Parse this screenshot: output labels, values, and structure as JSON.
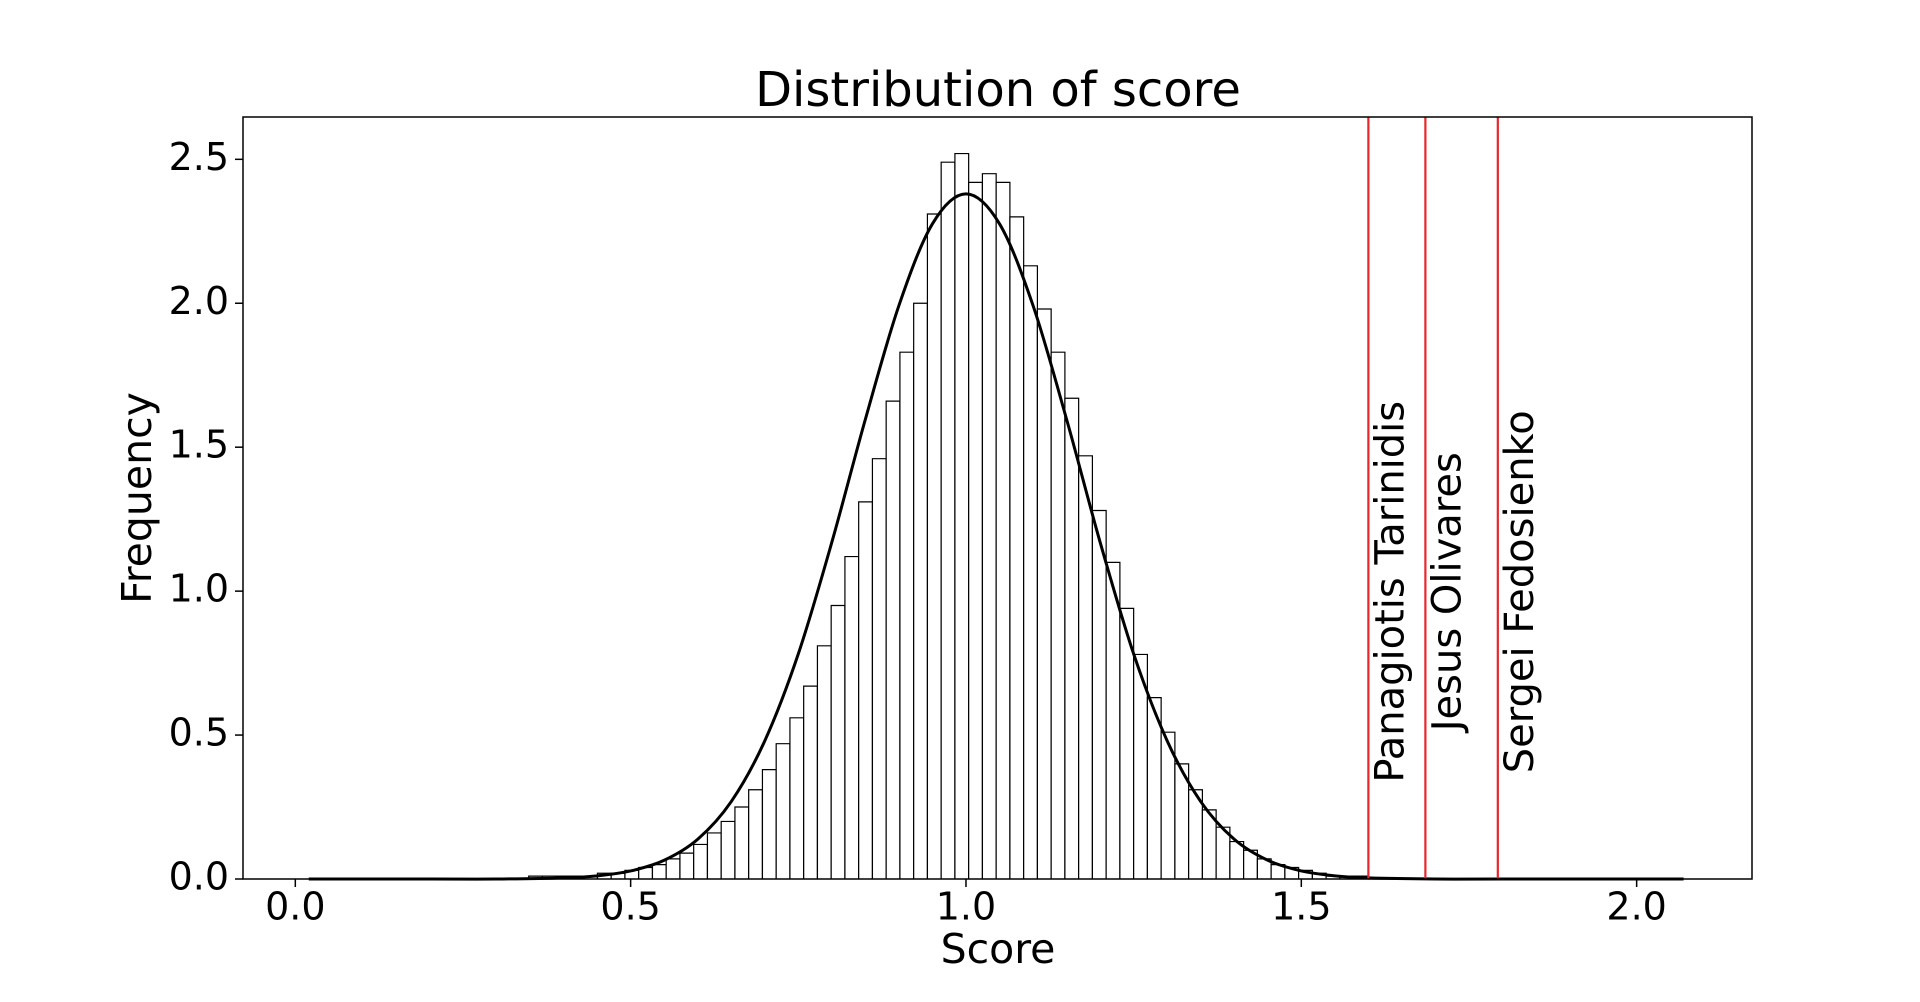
{
  "chart_data": {
    "type": "histogram",
    "title": "Distribution of score",
    "xlabel": "Score",
    "ylabel": "Frequency",
    "bins": [
      0.02,
      0.0405,
      0.061,
      0.0815,
      0.102,
      0.1225,
      0.143,
      0.1635,
      0.184,
      0.2045,
      0.225,
      0.2455,
      0.266,
      0.2865,
      0.307,
      0.3275,
      0.348,
      0.3685,
      0.389,
      0.4095,
      0.43,
      0.4505,
      0.471,
      0.4915,
      0.512,
      0.5325,
      0.553,
      0.5735,
      0.594,
      0.6145,
      0.635,
      0.6555,
      0.676,
      0.6965,
      0.717,
      0.7375,
      0.758,
      0.7785,
      0.799,
      0.8195,
      0.84,
      0.8605,
      0.881,
      0.9015,
      0.922,
      0.9425,
      0.963,
      0.9835,
      1.004,
      1.0245,
      1.045,
      1.0655,
      1.086,
      1.1065,
      1.127,
      1.1475,
      1.168,
      1.1885,
      1.209,
      1.2295,
      1.25,
      1.2705,
      1.291,
      1.3115,
      1.332,
      1.3525,
      1.373,
      1.3935,
      1.414,
      1.4345,
      1.455,
      1.4755,
      1.496,
      1.5165,
      1.537,
      1.5575,
      1.578,
      1.5985,
      1.619,
      1.6395,
      1.66,
      1.6805,
      1.701,
      1.7215,
      1.742,
      1.7625,
      1.783,
      1.8035,
      1.824,
      1.8445,
      1.865,
      1.8855,
      1.906,
      1.9265,
      1.947,
      1.9675,
      1.988,
      2.0085,
      2.029,
      2.0495,
      2.07
    ],
    "values": [
      0,
      0,
      0,
      0,
      0,
      0,
      0,
      0,
      0,
      0,
      0,
      0,
      0,
      0,
      0,
      0,
      0.01,
      0.01,
      0.01,
      0.01,
      0.01,
      0.02,
      0.02,
      0.03,
      0.04,
      0.05,
      0.07,
      0.09,
      0.12,
      0.16,
      0.2,
      0.25,
      0.31,
      0.38,
      0.47,
      0.56,
      0.67,
      0.81,
      0.95,
      1.12,
      1.31,
      1.46,
      1.66,
      1.83,
      2.0,
      2.31,
      2.49,
      2.52,
      2.42,
      2.45,
      2.42,
      2.3,
      2.13,
      1.98,
      1.83,
      1.67,
      1.47,
      1.28,
      1.1,
      0.94,
      0.78,
      0.63,
      0.51,
      0.4,
      0.31,
      0.24,
      0.18,
      0.13,
      0.1,
      0.07,
      0.05,
      0.04,
      0.03,
      0.02,
      0.01,
      0.01,
      0.01,
      0,
      0,
      0,
      0,
      0,
      0,
      0,
      0,
      0,
      0,
      0,
      0,
      0,
      0,
      0,
      0,
      0,
      0,
      0,
      0,
      0,
      0,
      0
    ],
    "bar_color": "#ffffff",
    "edge_color": "#000000",
    "fit": {
      "color": "#000000",
      "x": [
        0.02,
        0.2,
        0.3,
        0.4,
        0.45,
        0.5,
        0.55,
        0.6,
        0.65,
        0.7,
        0.75,
        0.8,
        0.85,
        0.9,
        0.95,
        1.0,
        1.05,
        1.1,
        1.15,
        1.2,
        1.25,
        1.3,
        1.35,
        1.4,
        1.45,
        1.5,
        1.55,
        1.6,
        1.7,
        1.8,
        2.07
      ],
      "y": [
        0,
        0,
        0,
        0.004,
        0.011,
        0.028,
        0.065,
        0.138,
        0.269,
        0.48,
        0.782,
        1.17,
        1.597,
        1.992,
        2.276,
        2.38,
        2.276,
        1.992,
        1.597,
        1.17,
        0.782,
        0.48,
        0.269,
        0.138,
        0.065,
        0.028,
        0.011,
        0.004,
        0,
        0,
        0
      ]
    },
    "markers": [
      {
        "name": "Panagiotis Tarinidis",
        "x": 1.6
      },
      {
        "name": "Jesus Olivares",
        "x": 1.685
      },
      {
        "name": "Sergei Fedosienko",
        "x": 1.793
      }
    ],
    "marker_color": "#e8262b",
    "xlim": [
      -0.078,
      2.172
    ],
    "ylim": [
      0,
      2.647
    ],
    "xticks": [
      {
        "value": 0,
        "label": "0.0"
      },
      {
        "value": 0.5,
        "label": "0.5"
      },
      {
        "value": 1,
        "label": "1.0"
      },
      {
        "value": 1.5,
        "label": "1.5"
      },
      {
        "value": 2,
        "label": "2.0"
      }
    ],
    "yticks": [
      {
        "value": 0,
        "label": "0.0"
      },
      {
        "value": 0.5,
        "label": "0.5"
      },
      {
        "value": 1,
        "label": "1.0"
      },
      {
        "value": 1.5,
        "label": "1.5"
      },
      {
        "value": 2,
        "label": "2.0"
      },
      {
        "value": 2.5,
        "label": "2.5"
      }
    ],
    "grid": false
  }
}
